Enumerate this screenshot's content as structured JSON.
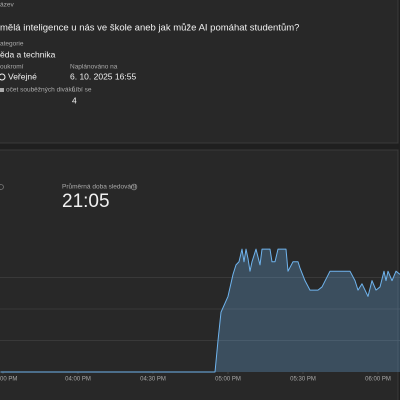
{
  "details": {
    "title_label": "ázev",
    "title": "mělá inteligence u nás ve škole aneb jak může AI pomáhat studentům?",
    "category_label": "ategorie",
    "category": "ěda a technika",
    "privacy_label": "oukromí",
    "privacy": "Veřejné",
    "scheduled_label": "Naplánováno na",
    "scheduled": "6. 10. 2025 16:55",
    "viewers_label": "očet souběžných diváků",
    "likes_label": "Líbí se",
    "likes": "4"
  },
  "chart_data": {
    "type": "area",
    "metric_label": "Průměrná doba sledování",
    "metric_value": "21:05",
    "x": [
      929,
      1014.8,
      1016.0,
      1017.2,
      1020.0,
      1022.0,
      1023.2,
      1024.4,
      1025.6,
      1026.4,
      1027.2,
      1028.0,
      1028.8,
      1029.6,
      1031.2,
      1032.8,
      1033.6,
      1036.8,
      1037.6,
      1038.8,
      1040.0,
      1043.2,
      1044.0,
      1046.0,
      1048.0,
      1048.8,
      1050.8,
      1052.8,
      1056.0,
      1057.6,
      1060.8,
      1068.8,
      1070.8,
      1072.0,
      1073.6,
      1076.0,
      1077.6,
      1079.2,
      1080.8,
      1082.4,
      1083.2,
      1084.0,
      1085.6,
      1087.2,
      1088.8
    ],
    "series": [
      {
        "color": "#6fb4ee",
        "values": [
          0,
          0,
          1.0,
          1.9,
          2.4,
          3.1,
          3.4,
          3.5,
          3.9,
          3.5,
          3.9,
          3.6,
          3.2,
          3.5,
          3.9,
          3.4,
          3.9,
          3.9,
          3.5,
          3.5,
          3.9,
          3.9,
          3.2,
          3.5,
          3.5,
          3.3,
          2.9,
          2.6,
          2.6,
          2.7,
          3.2,
          3.2,
          2.9,
          2.6,
          2.8,
          2.4,
          2.9,
          2.6,
          2.7,
          3.2,
          2.9,
          3.2,
          2.9,
          3.2,
          3.1
        ]
      }
    ],
    "xlim": [
      928.8,
      1088.8
    ],
    "xticks": [
      {
        "value": 930,
        "label": "00 PM"
      },
      {
        "value": 960,
        "label": "04:00 PM"
      },
      {
        "value": 990,
        "label": "04:30 PM"
      },
      {
        "value": 1020,
        "label": "05:00 PM"
      },
      {
        "value": 1050,
        "label": "05:30 PM"
      },
      {
        "value": 1080,
        "label": "06:00 PM"
      }
    ],
    "ylim": [
      0,
      4
    ],
    "gridlines": [
      1,
      2,
      3
    ]
  }
}
